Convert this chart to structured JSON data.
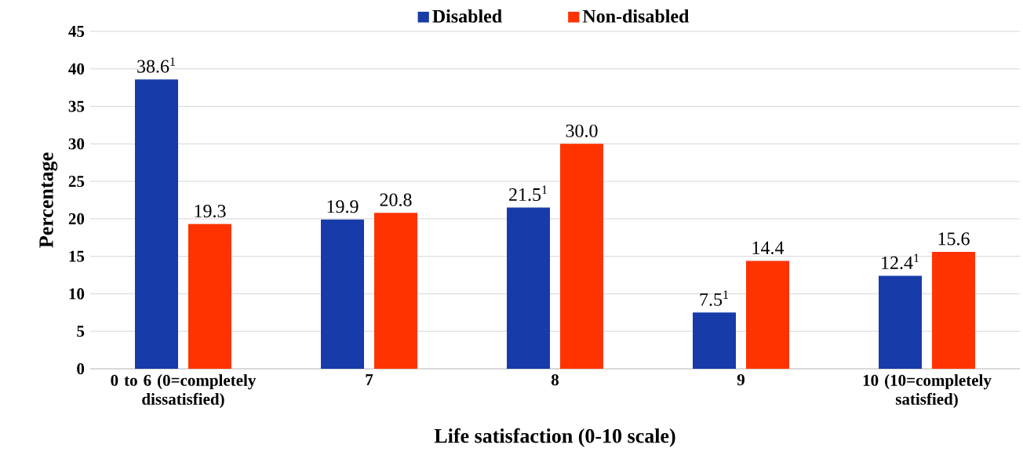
{
  "chart_data": {
    "type": "bar",
    "xlabel": "Life satisfaction (0-10 scale)",
    "ylabel": "Percentage",
    "categories": [
      "0 to 6 (0=completely dissatisfied)",
      "7",
      "8",
      "9",
      "10 (10=completely satisfied)"
    ],
    "series": [
      {
        "name": "Disabled",
        "color": "#173ba9",
        "values": [
          38.6,
          19.9,
          21.5,
          7.5,
          12.4
        ],
        "value_labels": [
          "38.6$^{1}$",
          "19.9",
          "21.5$^{1}$",
          "7.5$^{1}$",
          "12.4$^{1}$"
        ]
      },
      {
        "name": "Non-disabled",
        "color": "#ff3300",
        "values": [
          19.3,
          20.8,
          30.0,
          14.4,
          15.6
        ],
        "value_labels": [
          "19.3",
          "20.8",
          "30.0",
          "14.4",
          "15.6"
        ]
      }
    ],
    "ylim": [
      0,
      45
    ],
    "yticks": [
      0,
      5,
      10,
      15,
      20,
      25,
      30,
      35,
      40,
      45
    ],
    "grid": "y",
    "legend": "top"
  }
}
